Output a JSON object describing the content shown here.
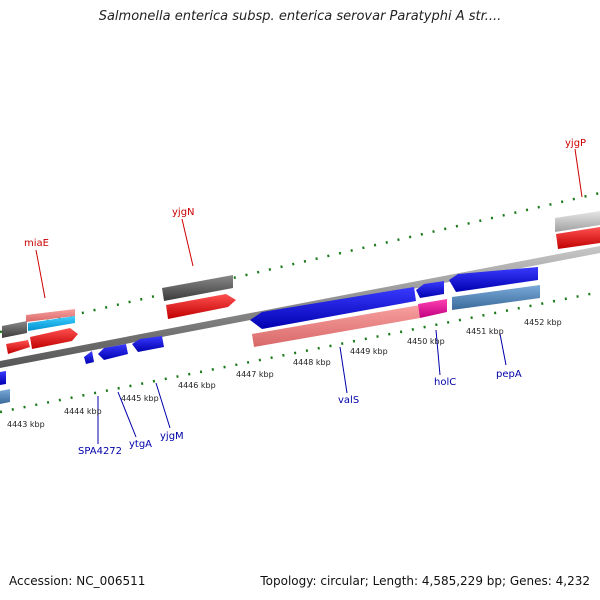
{
  "title": "Salmonella enterica subsp. enterica serovar Paratyphi A str....",
  "footer": {
    "accession": "Accession: NC_006511",
    "summary": "Topology: circular; Length: 4,585,229 bp; Genes: 4,232"
  },
  "colors": {
    "red_label": "#cc0000",
    "blue_label": "#0000aa",
    "tick_green": "#1a7a1a",
    "gene_blue": "#0000ee",
    "gene_red": "#ee0000"
  },
  "kbp_labels": [
    "4443 kbp",
    "4444 kbp",
    "4445 kbp",
    "4446 kbp",
    "4447 kbp",
    "4448 kbp",
    "4449 kbp",
    "4450 kbp",
    "4451 kbp",
    "4452 kbp"
  ],
  "top_gene_labels": [
    "miaE",
    "yjgN",
    "yjgP"
  ],
  "bottom_gene_labels": [
    "SPA4272",
    "ytgA",
    "yjgM",
    "valS",
    "holC",
    "pepA"
  ]
}
